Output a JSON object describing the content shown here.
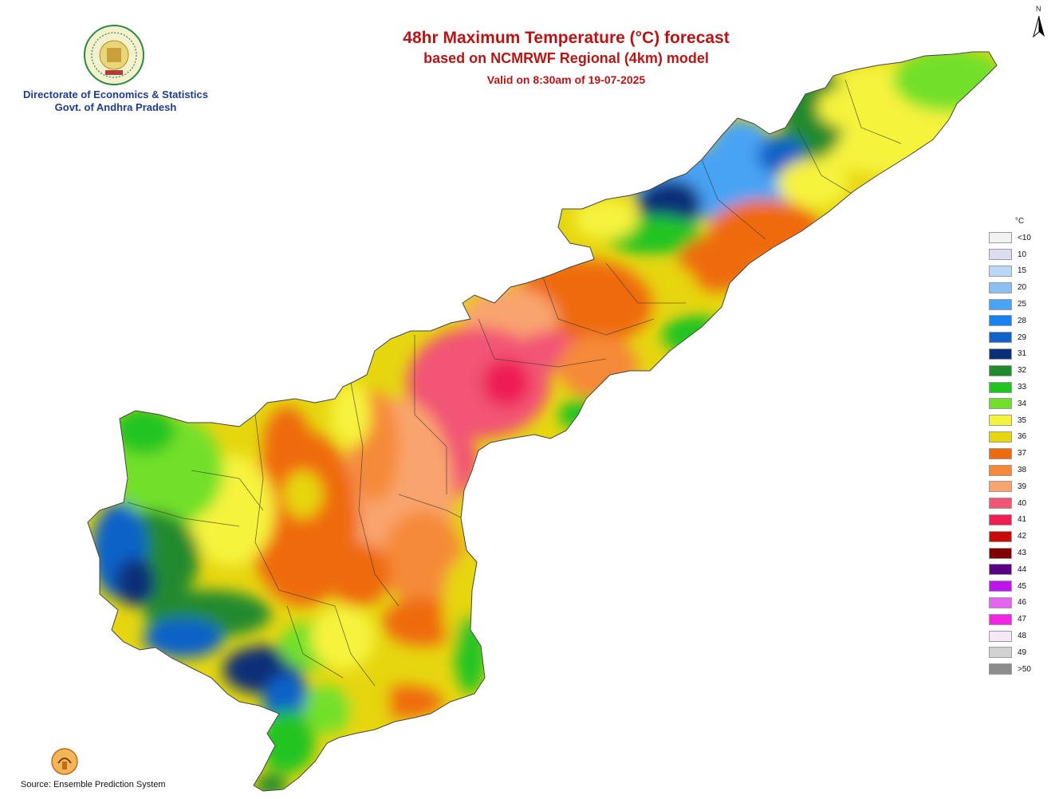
{
  "header": {
    "title_line1": "48hr Maximum Temperature (°C) forecast",
    "title_line2": "based on NCMRWF Regional (4km) model",
    "valid_line": "Valid on 8:30am of 19-07-2025"
  },
  "organization": {
    "line1": "Directorate of Economics & Statistics",
    "line2": "Govt. of Andhra Pradesh",
    "seal_icon": "ap-state-emblem-icon"
  },
  "north_arrow": {
    "label": "N",
    "icon": "north-arrow-icon"
  },
  "legend": {
    "unit": "°C",
    "items": [
      {
        "label": "<10",
        "color": "#f2f2f2"
      },
      {
        "label": "10",
        "color": "#dcdcf2"
      },
      {
        "label": "15",
        "color": "#b9d8f7"
      },
      {
        "label": "20",
        "color": "#8cc0f5"
      },
      {
        "label": "25",
        "color": "#4aa3f5"
      },
      {
        "label": "28",
        "color": "#1a82ef"
      },
      {
        "label": "29",
        "color": "#0f62c8"
      },
      {
        "label": "31",
        "color": "#0a2f78"
      },
      {
        "label": "32",
        "color": "#208a2e"
      },
      {
        "label": "33",
        "color": "#22c422"
      },
      {
        "label": "34",
        "color": "#72e02a"
      },
      {
        "label": "35",
        "color": "#f6f33c"
      },
      {
        "label": "36",
        "color": "#e6d610"
      },
      {
        "label": "37",
        "color": "#ef6a0b"
      },
      {
        "label": "38",
        "color": "#f58a38"
      },
      {
        "label": "39",
        "color": "#f9a46e"
      },
      {
        "label": "40",
        "color": "#f25575"
      },
      {
        "label": "41",
        "color": "#ee1f55"
      },
      {
        "label": "42",
        "color": "#c80a0a"
      },
      {
        "label": "43",
        "color": "#800000"
      },
      {
        "label": "44",
        "color": "#5a0082"
      },
      {
        "label": "45",
        "color": "#be14f0"
      },
      {
        "label": "46",
        "color": "#e665f0"
      },
      {
        "label": "47",
        "color": "#f523e6"
      },
      {
        "label": "48",
        "color": "#f5e6f8"
      },
      {
        "label": "49",
        "color": "#d2d2d2"
      },
      {
        "label": ">50",
        "color": "#8c8c8c"
      }
    ]
  },
  "footer": {
    "source": "Source: Ensemble Prediction System",
    "logo_icon": "ncmrwf-logo-icon"
  }
}
